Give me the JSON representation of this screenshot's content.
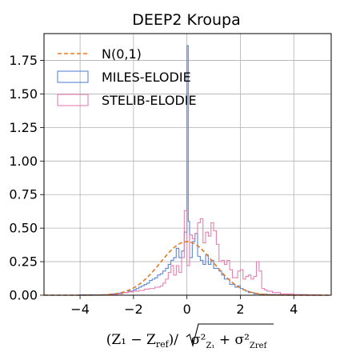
{
  "chart_data": {
    "type": "histogram",
    "title": "DEEP2 Kroupa",
    "xlabel": "(Z₁ − Z_ref) / √(σ²_Z₁ + σ²_Z_ref)",
    "xlabel_parts": {
      "num": "(Z₁ − Z",
      "num_sub": "ref",
      "close": ")/",
      "sigma1": "σ²",
      "sigma1_sub": "Z₁",
      "plus": " + ",
      "sigma2": "σ²",
      "sigma2_sub": "Zref"
    },
    "ylabel": "",
    "xlim": [
      -5.35,
      5.4
    ],
    "ylim": [
      0,
      1.95
    ],
    "x_ticks": [
      -4,
      -2,
      0,
      2,
      4
    ],
    "x_tick_labels": [
      "−4",
      "−2",
      "0",
      "2",
      "4"
    ],
    "y_ticks": [
      0.0,
      0.25,
      0.5,
      0.75,
      1.0,
      1.25,
      1.5,
      1.75
    ],
    "y_tick_labels": [
      "0.00",
      "0.25",
      "0.50",
      "0.75",
      "1.00",
      "1.25",
      "1.50",
      "1.75"
    ],
    "grid": true,
    "legend_position": "top-left",
    "bin_width": 0.1,
    "series": [
      {
        "name": "N(0,1)",
        "kind": "line",
        "style": "dashed",
        "color": "#e07b2a",
        "x_range": [
          -5.35,
          5.4
        ],
        "function": "standard_normal_pdf"
      },
      {
        "name": "MILES-ELODIE",
        "kind": "step",
        "color": "#5b86d6",
        "bins_x": [
          -5.0,
          -4.0,
          -3.0,
          -2.8,
          -2.6,
          -2.4,
          -2.2,
          -2.0,
          -1.9,
          -1.8,
          -1.7,
          -1.6,
          -1.5,
          -1.4,
          -1.3,
          -1.2,
          -1.1,
          -1.0,
          -0.9,
          -0.8,
          -0.7,
          -0.6,
          -0.5,
          -0.4,
          -0.3,
          -0.2,
          -0.1,
          0.0,
          0.05,
          0.1,
          0.2,
          0.3,
          0.4,
          0.5,
          0.6,
          0.7,
          0.8,
          0.9,
          1.0,
          1.1,
          1.2,
          1.3,
          1.4,
          1.5,
          1.6,
          1.7,
          1.8,
          1.9,
          2.0,
          2.1,
          2.2,
          2.3,
          2.4,
          2.5,
          2.7,
          3.0,
          3.5,
          4.0,
          5.0
        ],
        "bins_y": [
          0.0,
          0.003,
          0.006,
          0.01,
          0.015,
          0.02,
          0.03,
          0.04,
          0.05,
          0.06,
          0.07,
          0.08,
          0.09,
          0.11,
          0.12,
          0.13,
          0.15,
          0.16,
          0.18,
          0.2,
          0.23,
          0.26,
          0.28,
          0.35,
          0.28,
          0.33,
          0.47,
          1.86,
          0.55,
          0.28,
          0.4,
          0.46,
          0.29,
          0.26,
          0.23,
          0.3,
          0.23,
          0.26,
          0.2,
          0.2,
          0.18,
          0.15,
          0.12,
          0.12,
          0.08,
          0.08,
          0.06,
          0.07,
          0.05,
          0.04,
          0.03,
          0.02,
          0.02,
          0.01,
          0.008,
          0.005,
          0.002,
          0.001,
          0.0
        ]
      },
      {
        "name": "STELIB-ELODIE",
        "kind": "step",
        "color": "#e87fb0",
        "bins_x": [
          -5.0,
          -4.0,
          -3.0,
          -2.6,
          -2.4,
          -2.2,
          -2.0,
          -1.8,
          -1.6,
          -1.4,
          -1.2,
          -1.0,
          -0.9,
          -0.8,
          -0.7,
          -0.6,
          -0.5,
          -0.4,
          -0.3,
          -0.2,
          -0.1,
          0.0,
          0.1,
          0.2,
          0.3,
          0.4,
          0.5,
          0.6,
          0.7,
          0.8,
          0.9,
          1.0,
          1.1,
          1.2,
          1.3,
          1.4,
          1.5,
          1.6,
          1.7,
          1.8,
          1.9,
          2.0,
          2.1,
          2.2,
          2.3,
          2.4,
          2.5,
          2.6,
          2.7,
          2.8,
          2.9,
          3.0,
          3.2,
          3.5,
          4.0,
          4.5,
          5.0
        ],
        "bins_y": [
          0.0,
          0.0,
          0.005,
          0.01,
          0.02,
          0.025,
          0.03,
          0.035,
          0.045,
          0.05,
          0.06,
          0.07,
          0.09,
          0.12,
          0.17,
          0.22,
          0.15,
          0.22,
          0.17,
          0.28,
          0.63,
          0.22,
          0.45,
          0.42,
          0.46,
          0.54,
          0.57,
          0.39,
          0.47,
          0.44,
          0.54,
          0.48,
          0.38,
          0.25,
          0.26,
          0.23,
          0.26,
          0.19,
          0.13,
          0.13,
          0.18,
          0.19,
          0.12,
          0.14,
          0.15,
          0.12,
          0.14,
          0.25,
          0.18,
          0.05,
          0.04,
          0.03,
          0.02,
          0.01,
          0.005,
          0.003,
          0.0
        ]
      }
    ]
  }
}
